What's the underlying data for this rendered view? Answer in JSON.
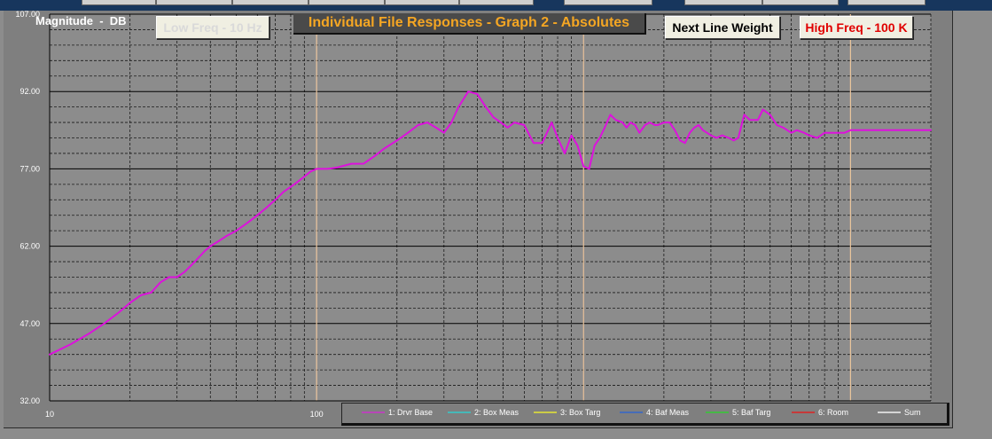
{
  "chart_data": {
    "type": "line",
    "title": "Individual File Responses - Graph 2 - Absolutes",
    "ylabel": "Magnitude  -  DB",
    "xscale": "log",
    "xlim": [
      10,
      20000
    ],
    "ylim": [
      32,
      107
    ],
    "y_ticks": [
      "32.00",
      "47.00",
      "62.00",
      "77.00",
      "92.00",
      "107.00"
    ],
    "x_ticks": [
      {
        "value": 10,
        "label": "10"
      },
      {
        "value": 100,
        "label": "100"
      }
    ],
    "marker_lines": [
      100,
      1000,
      10000
    ],
    "grid": true,
    "legend_position": "bottom-right",
    "legend": [
      {
        "label": "1: Drvr Base",
        "color": "#cc33cc"
      },
      {
        "label": "2: Box Meas",
        "color": "#33cccc"
      },
      {
        "label": "3: Box Targ",
        "color": "#e6e633"
      },
      {
        "label": "4: Baf Meas",
        "color": "#3366cc"
      },
      {
        "label": "5: Baf Targ",
        "color": "#33cc33"
      },
      {
        "label": "6: Room",
        "color": "#dd2222"
      },
      {
        "label": "Sum",
        "color": "#f2f2f2"
      }
    ],
    "series": [
      {
        "name": "1: Drvr Base",
        "color": "#dd11dd",
        "x": [
          10,
          12,
          14,
          16,
          18,
          20,
          22,
          24,
          26,
          28,
          30,
          32,
          35,
          38,
          40,
          43,
          46,
          50,
          55,
          60,
          65,
          70,
          75,
          80,
          85,
          90,
          95,
          100,
          105,
          110,
          120,
          135,
          150,
          165,
          180,
          200,
          220,
          240,
          260,
          280,
          300,
          320,
          340,
          370,
          400,
          430,
          460,
          490,
          520,
          550,
          600,
          650,
          700,
          760,
          800,
          850,
          900,
          950,
          1000,
          1050,
          1100,
          1150,
          1200,
          1260,
          1320,
          1400,
          1450,
          1500,
          1560,
          1620,
          1700,
          1770,
          1850,
          1900,
          2000,
          2100,
          2200,
          2300,
          2400,
          2500,
          2600,
          2700,
          2800,
          2900,
          3000,
          3150,
          3300,
          3500,
          3650,
          3800,
          4000,
          4200,
          4500,
          4700,
          5000,
          5300,
          5600,
          6000,
          6300,
          6700,
          7000,
          7500,
          8000,
          8500,
          9000,
          9500,
          10000,
          10500,
          11000,
          11500,
          12000,
          12500,
          13000,
          13500,
          14000,
          14500,
          15000,
          16000,
          17000,
          18000,
          19000,
          20000
        ],
        "y": [
          41,
          43,
          45,
          47,
          49,
          51,
          52.5,
          53,
          55,
          56,
          56,
          57,
          59,
          61,
          62,
          63,
          64,
          65,
          66.5,
          68,
          69.5,
          71,
          72.5,
          73.5,
          74.5,
          75.5,
          76.5,
          77,
          77,
          77,
          77.3,
          78,
          78,
          79.5,
          81,
          82.5,
          84,
          85.5,
          86,
          85,
          84,
          86,
          89,
          92,
          91.5,
          89,
          87,
          86,
          85,
          86,
          85.5,
          82,
          82,
          86,
          83,
          80,
          83.5,
          81.5,
          77.5,
          77,
          81.5,
          83,
          85,
          87.5,
          86.5,
          86,
          85,
          86,
          85.5,
          84,
          85.5,
          86,
          85.5,
          85.5,
          86,
          86,
          84.5,
          82.5,
          82,
          84,
          85,
          85.5,
          84.5,
          84,
          83.5,
          83,
          83.5,
          83,
          82.5,
          83,
          87.5,
          86.5,
          86.5,
          88.5,
          87.5,
          85.5,
          85,
          84,
          84.5,
          84,
          83.5,
          83,
          84,
          84,
          84,
          84,
          84.5,
          84.5,
          84.5,
          84.5,
          84.5,
          84.5,
          84.5,
          84.5,
          84.5,
          84.5,
          84.5,
          84.5,
          84.5,
          84.5,
          84.5,
          84.5
        ]
      }
    ]
  },
  "labels": {
    "magnitude": "Magnitude  -  DB",
    "title": "Individual File Responses - Graph 2 - Absolutes"
  },
  "buttons": {
    "low_freq": "Low Freq - 10 Hz",
    "next_line_weight": "Next Line Weight",
    "high_freq": "High Freq - 100 K"
  },
  "colors": {
    "plot_background": "#8c8c8c",
    "title_text": "#f5a623",
    "marker_line": "#f0c9a0",
    "high_freq_text": "#e00000"
  }
}
